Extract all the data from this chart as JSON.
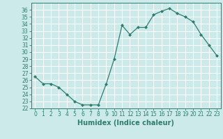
{
  "x": [
    0,
    1,
    2,
    3,
    4,
    5,
    6,
    7,
    8,
    9,
    10,
    11,
    12,
    13,
    14,
    15,
    16,
    17,
    18,
    19,
    20,
    21,
    22,
    23
  ],
  "y": [
    26.5,
    25.5,
    25.5,
    25.0,
    24.0,
    23.0,
    22.5,
    22.5,
    22.5,
    25.5,
    29.0,
    33.8,
    32.5,
    33.5,
    33.5,
    35.3,
    35.8,
    36.2,
    35.5,
    35.0,
    34.3,
    32.5,
    31.0,
    29.5
  ],
  "xlabel": "Humidex (Indice chaleur)",
  "xlim": [
    -0.5,
    23.5
  ],
  "ylim": [
    22,
    37
  ],
  "yticks": [
    22,
    23,
    24,
    25,
    26,
    27,
    28,
    29,
    30,
    31,
    32,
    33,
    34,
    35,
    36
  ],
  "xticks": [
    0,
    1,
    2,
    3,
    4,
    5,
    6,
    7,
    8,
    9,
    10,
    11,
    12,
    13,
    14,
    15,
    16,
    17,
    18,
    19,
    20,
    21,
    22,
    23
  ],
  "line_color": "#2e7d6e",
  "marker": "D",
  "marker_size": 2,
  "bg_color": "#cdeaea",
  "grid_color": "#ffffff",
  "tick_label_fontsize": 5.5,
  "xlabel_fontsize": 7.0
}
